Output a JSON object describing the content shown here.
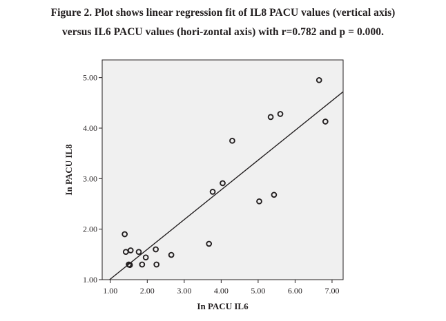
{
  "caption": {
    "line1": "Figure 2. Plot shows linear regression fit of IL8 PACU values (vertical axis)",
    "line2": "versus IL6 PACU values (hori-zontal axis) with r=0.782 and p = 0.000."
  },
  "chart_data": {
    "type": "scatter",
    "title": "",
    "xlabel": "In PACU IL6",
    "ylabel": "In PACU IL8",
    "xlim": [
      0.78,
      7.3
    ],
    "ylim": [
      1.0,
      5.35
    ],
    "x_ticks": [
      "1.00",
      "2.00",
      "3.00",
      "4.00",
      "5.00",
      "6.00",
      "7.00"
    ],
    "y_ticks": [
      "1.00",
      "2.00",
      "3.00",
      "4.00",
      "5.00"
    ],
    "grid": false,
    "legend": "none",
    "colors": {
      "plot_background": "#f0f0f0",
      "marker": "#231f20",
      "line": "#231f20"
    },
    "points": [
      {
        "x": 1.39,
        "y": 1.9
      },
      {
        "x": 1.42,
        "y": 1.55
      },
      {
        "x": 1.55,
        "y": 1.58
      },
      {
        "x": 1.5,
        "y": 1.3
      },
      {
        "x": 1.53,
        "y": 1.29
      },
      {
        "x": 1.77,
        "y": 1.55
      },
      {
        "x": 1.86,
        "y": 1.3
      },
      {
        "x": 1.96,
        "y": 1.44
      },
      {
        "x": 2.23,
        "y": 1.6
      },
      {
        "x": 2.25,
        "y": 1.3
      },
      {
        "x": 2.65,
        "y": 1.49
      },
      {
        "x": 3.67,
        "y": 1.71
      },
      {
        "x": 3.77,
        "y": 2.74
      },
      {
        "x": 4.04,
        "y": 2.91
      },
      {
        "x": 4.3,
        "y": 3.75
      },
      {
        "x": 5.03,
        "y": 2.55
      },
      {
        "x": 5.34,
        "y": 4.22
      },
      {
        "x": 5.43,
        "y": 2.68
      },
      {
        "x": 5.6,
        "y": 4.28
      },
      {
        "x": 6.65,
        "y": 4.95
      },
      {
        "x": 6.82,
        "y": 4.13
      }
    ],
    "fit_line": {
      "x": [
        0.98,
        7.3
      ],
      "y": [
        1.0,
        4.72
      ]
    }
  }
}
